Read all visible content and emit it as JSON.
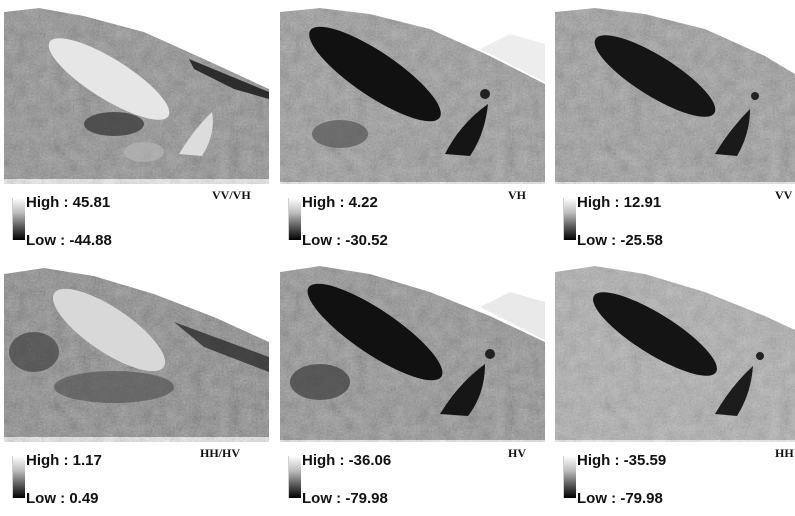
{
  "panels": [
    {
      "band": "VV/VH",
      "high": "High : 45.81",
      "low": "Low : -44.88"
    },
    {
      "band": "VH",
      "high": "High : 4.22",
      "low": "Low : -30.52"
    },
    {
      "band": "VV",
      "high": "High : 12.91",
      "low": "Low : -25.58"
    },
    {
      "band": "HH/HV",
      "high": "High : 1.17",
      "low": "Low : 0.49"
    },
    {
      "band": "HV",
      "high": "High : -36.06",
      "low": "Low : -79.98"
    },
    {
      "band": "HH",
      "high": "High : -35.59",
      "low": "Low : -79.98"
    }
  ]
}
